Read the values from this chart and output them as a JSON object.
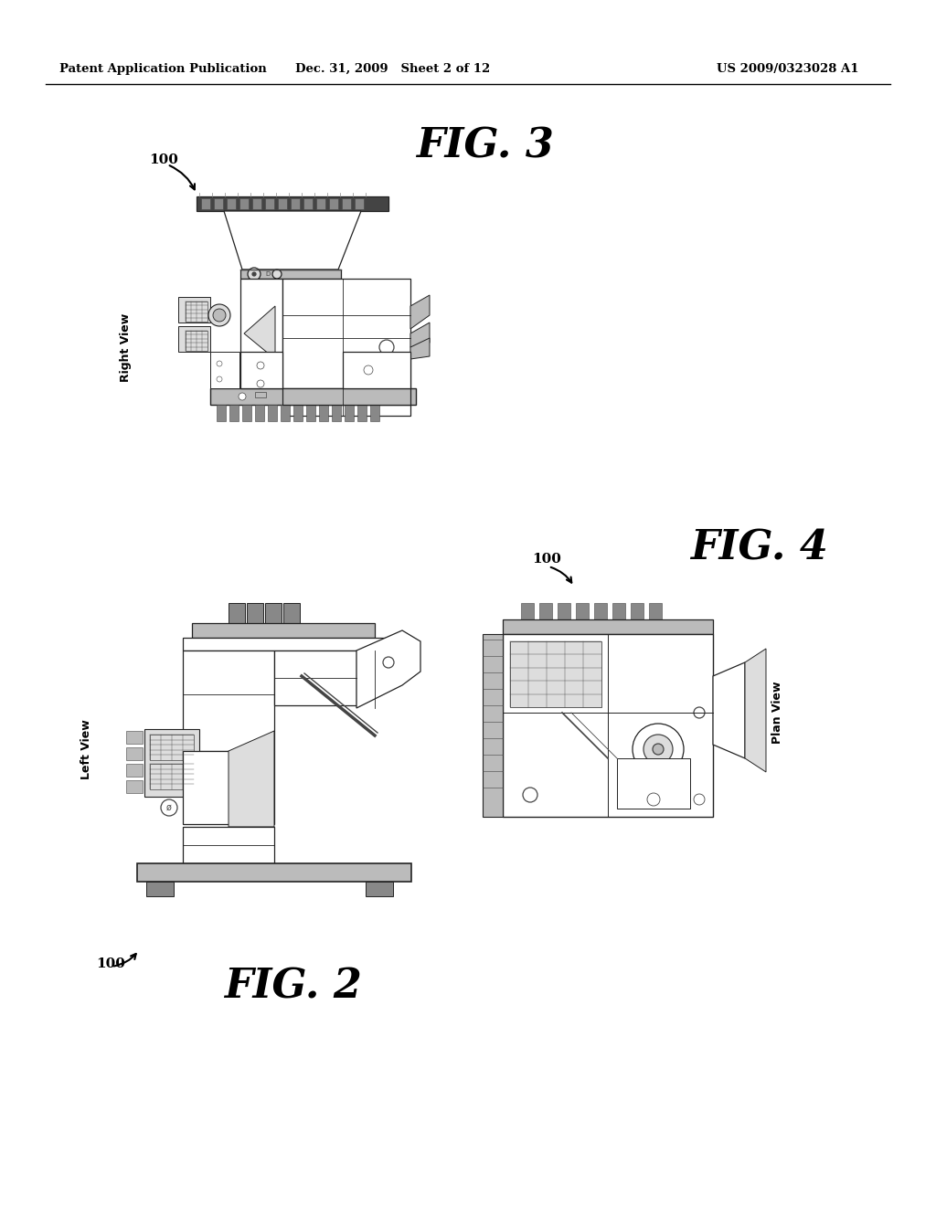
{
  "background_color": "#ffffff",
  "header_left": "Patent Application Publication",
  "header_center": "Dec. 31, 2009   Sheet 2 of 12",
  "header_right": "US 2009/0323028 A1",
  "fig3_label": "FIG. 3",
  "fig2_label": "FIG. 2",
  "fig4_label": "FIG. 4",
  "right_view_label": "Right View",
  "left_view_label": "Left View",
  "plan_view_label": "Plan View",
  "ref_100": "100",
  "line_color": "#222222",
  "dark_gray": "#444444",
  "mid_gray": "#888888",
  "light_gray": "#bbbbbb",
  "very_light_gray": "#dddddd"
}
